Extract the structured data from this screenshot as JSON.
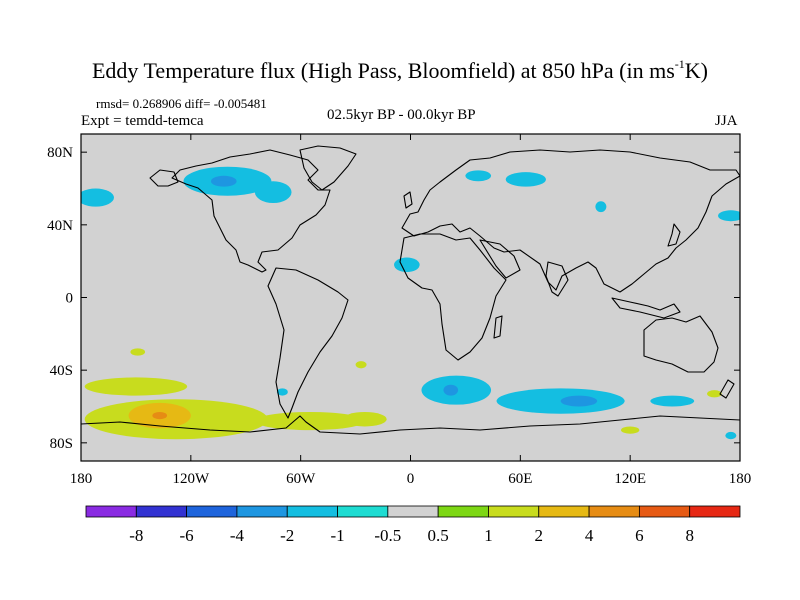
{
  "figure": {
    "title_main": "Eddy Temperature flux (High Pass, Bloomfield) at 850 hPa (in ms",
    "title_sup": "-1",
    "title_end": "K)",
    "stats": "rmsd= 0.268906 diff= -0.005481",
    "experiment": "Expt = temdd-temca",
    "period": "02.5kyr BP - 00.0kyr BP",
    "season": "JJA"
  },
  "colors": {
    "land_background": "#d2d2d2",
    "coastline": "#000000"
  },
  "chart_data": {
    "type": "heatmap",
    "title": "Eddy Temperature flux (High Pass, Bloomfield) at 850 hPa (in ms-1K)",
    "projection": "cylindrical equidistant",
    "xlim": [
      -180,
      180
    ],
    "ylim": [
      -90,
      90
    ],
    "x_ticks": [
      {
        "value": -180,
        "label": "180"
      },
      {
        "value": -120,
        "label": "120W"
      },
      {
        "value": -60,
        "label": "60W"
      },
      {
        "value": 0,
        "label": "0"
      },
      {
        "value": 60,
        "label": "60E"
      },
      {
        "value": 120,
        "label": "120E"
      },
      {
        "value": 180,
        "label": "180"
      }
    ],
    "y_ticks": [
      {
        "value": 80,
        "label": "80N"
      },
      {
        "value": 40,
        "label": "40N"
      },
      {
        "value": 0,
        "label": "0"
      },
      {
        "value": -40,
        "label": "40S"
      },
      {
        "value": -80,
        "label": "80S"
      }
    ],
    "colorbar": {
      "colors": [
        "#8a2be2",
        "#3232d2",
        "#1e64dc",
        "#1e96e1",
        "#14bee1",
        "#1edcd2",
        "#d2d2d2",
        "#7dd714",
        "#c8dc1e",
        "#e6b914",
        "#e68c14",
        "#e65a14",
        "#e62814"
      ],
      "labels": [
        "-8",
        "-6",
        "-4",
        "-2",
        "-1",
        "-0.5",
        "0.5",
        "1",
        "2",
        "4",
        "6",
        "8"
      ]
    },
    "anomaly_regions": [
      {
        "name": "north-pacific-negative",
        "category": "-1",
        "lon": -172,
        "lat": 55,
        "rx": 10,
        "ry": 5
      },
      {
        "name": "canada-negative",
        "category": "-1",
        "lon": -100,
        "lat": 64,
        "rx": 24,
        "ry": 8
      },
      {
        "name": "canada-core",
        "category": "-2",
        "lon": -102,
        "lat": 64,
        "rx": 7,
        "ry": 3
      },
      {
        "name": "east-canada-negative",
        "category": "-1",
        "lon": -75,
        "lat": 58,
        "rx": 10,
        "ry": 6
      },
      {
        "name": "siberia-west-negative",
        "category": "-1",
        "lon": 37,
        "lat": 67,
        "rx": 7,
        "ry": 3
      },
      {
        "name": "siberia-negative",
        "category": "-1",
        "lon": 63,
        "lat": 65,
        "rx": 11,
        "ry": 4
      },
      {
        "name": "east-asia-negative",
        "category": "-1",
        "lon": 104,
        "lat": 50,
        "rx": 3,
        "ry": 3
      },
      {
        "name": "north-pacific-east-negative",
        "category": "-1",
        "lon": 175,
        "lat": 45,
        "rx": 7,
        "ry": 3
      },
      {
        "name": "north-atlantic-negative",
        "category": "-1",
        "lon": -2,
        "lat": 18,
        "rx": 7,
        "ry": 4
      },
      {
        "name": "south-pacific-small",
        "category": "1",
        "lon": -149,
        "lat": -30,
        "rx": 4,
        "ry": 2
      },
      {
        "name": "south-atlantic-small",
        "category": "1",
        "lon": -27,
        "lat": -37,
        "rx": 3,
        "ry": 2
      },
      {
        "name": "patagonia-small",
        "category": "-1",
        "lon": -70,
        "lat": -52,
        "rx": 3,
        "ry": 2
      },
      {
        "name": "southern-ocean-negative-a",
        "category": "-1",
        "lon": 25,
        "lat": -51,
        "rx": 19,
        "ry": 8
      },
      {
        "name": "southern-ocean-core-a",
        "category": "-2",
        "lon": 22,
        "lat": -51,
        "rx": 4,
        "ry": 3
      },
      {
        "name": "southern-ocean-negative-b",
        "category": "-1",
        "lon": 82,
        "lat": -57,
        "rx": 35,
        "ry": 7
      },
      {
        "name": "southern-ocean-core-b",
        "category": "-2",
        "lon": 92,
        "lat": -57,
        "rx": 10,
        "ry": 3
      },
      {
        "name": "southern-ocean-negative-c",
        "category": "-1",
        "lon": 143,
        "lat": -57,
        "rx": 12,
        "ry": 3
      },
      {
        "name": "southern-ocean-negative-d",
        "category": "-1",
        "lon": 175,
        "lat": -76,
        "rx": 3,
        "ry": 2
      },
      {
        "name": "southern-ocean-positive-east",
        "category": "1",
        "lon": 120,
        "lat": -73,
        "rx": 5,
        "ry": 2
      },
      {
        "name": "southern-ocean-positive-far-east",
        "category": "1",
        "lon": 166,
        "lat": -53,
        "rx": 4,
        "ry": 2
      },
      {
        "name": "south-pacific-positive-band",
        "category": "1",
        "lon": -150,
        "lat": -49,
        "rx": 28,
        "ry": 5
      },
      {
        "name": "south-pacific-positive-large",
        "category": "1",
        "lon": -128,
        "lat": -67,
        "rx": 50,
        "ry": 11
      },
      {
        "name": "south-pacific-positive-tail",
        "category": "1",
        "lon": -55,
        "lat": -68,
        "rx": 30,
        "ry": 5
      },
      {
        "name": "south-pacific-positive-tail-2",
        "category": "1",
        "lon": -25,
        "lat": -67,
        "rx": 12,
        "ry": 4
      },
      {
        "name": "south-pacific-strong",
        "category": "2",
        "lon": -137,
        "lat": -65,
        "rx": 17,
        "ry": 7
      },
      {
        "name": "south-pacific-core",
        "category": "4",
        "lon": -137,
        "lat": -65,
        "rx": 4,
        "ry": 2
      }
    ]
  }
}
